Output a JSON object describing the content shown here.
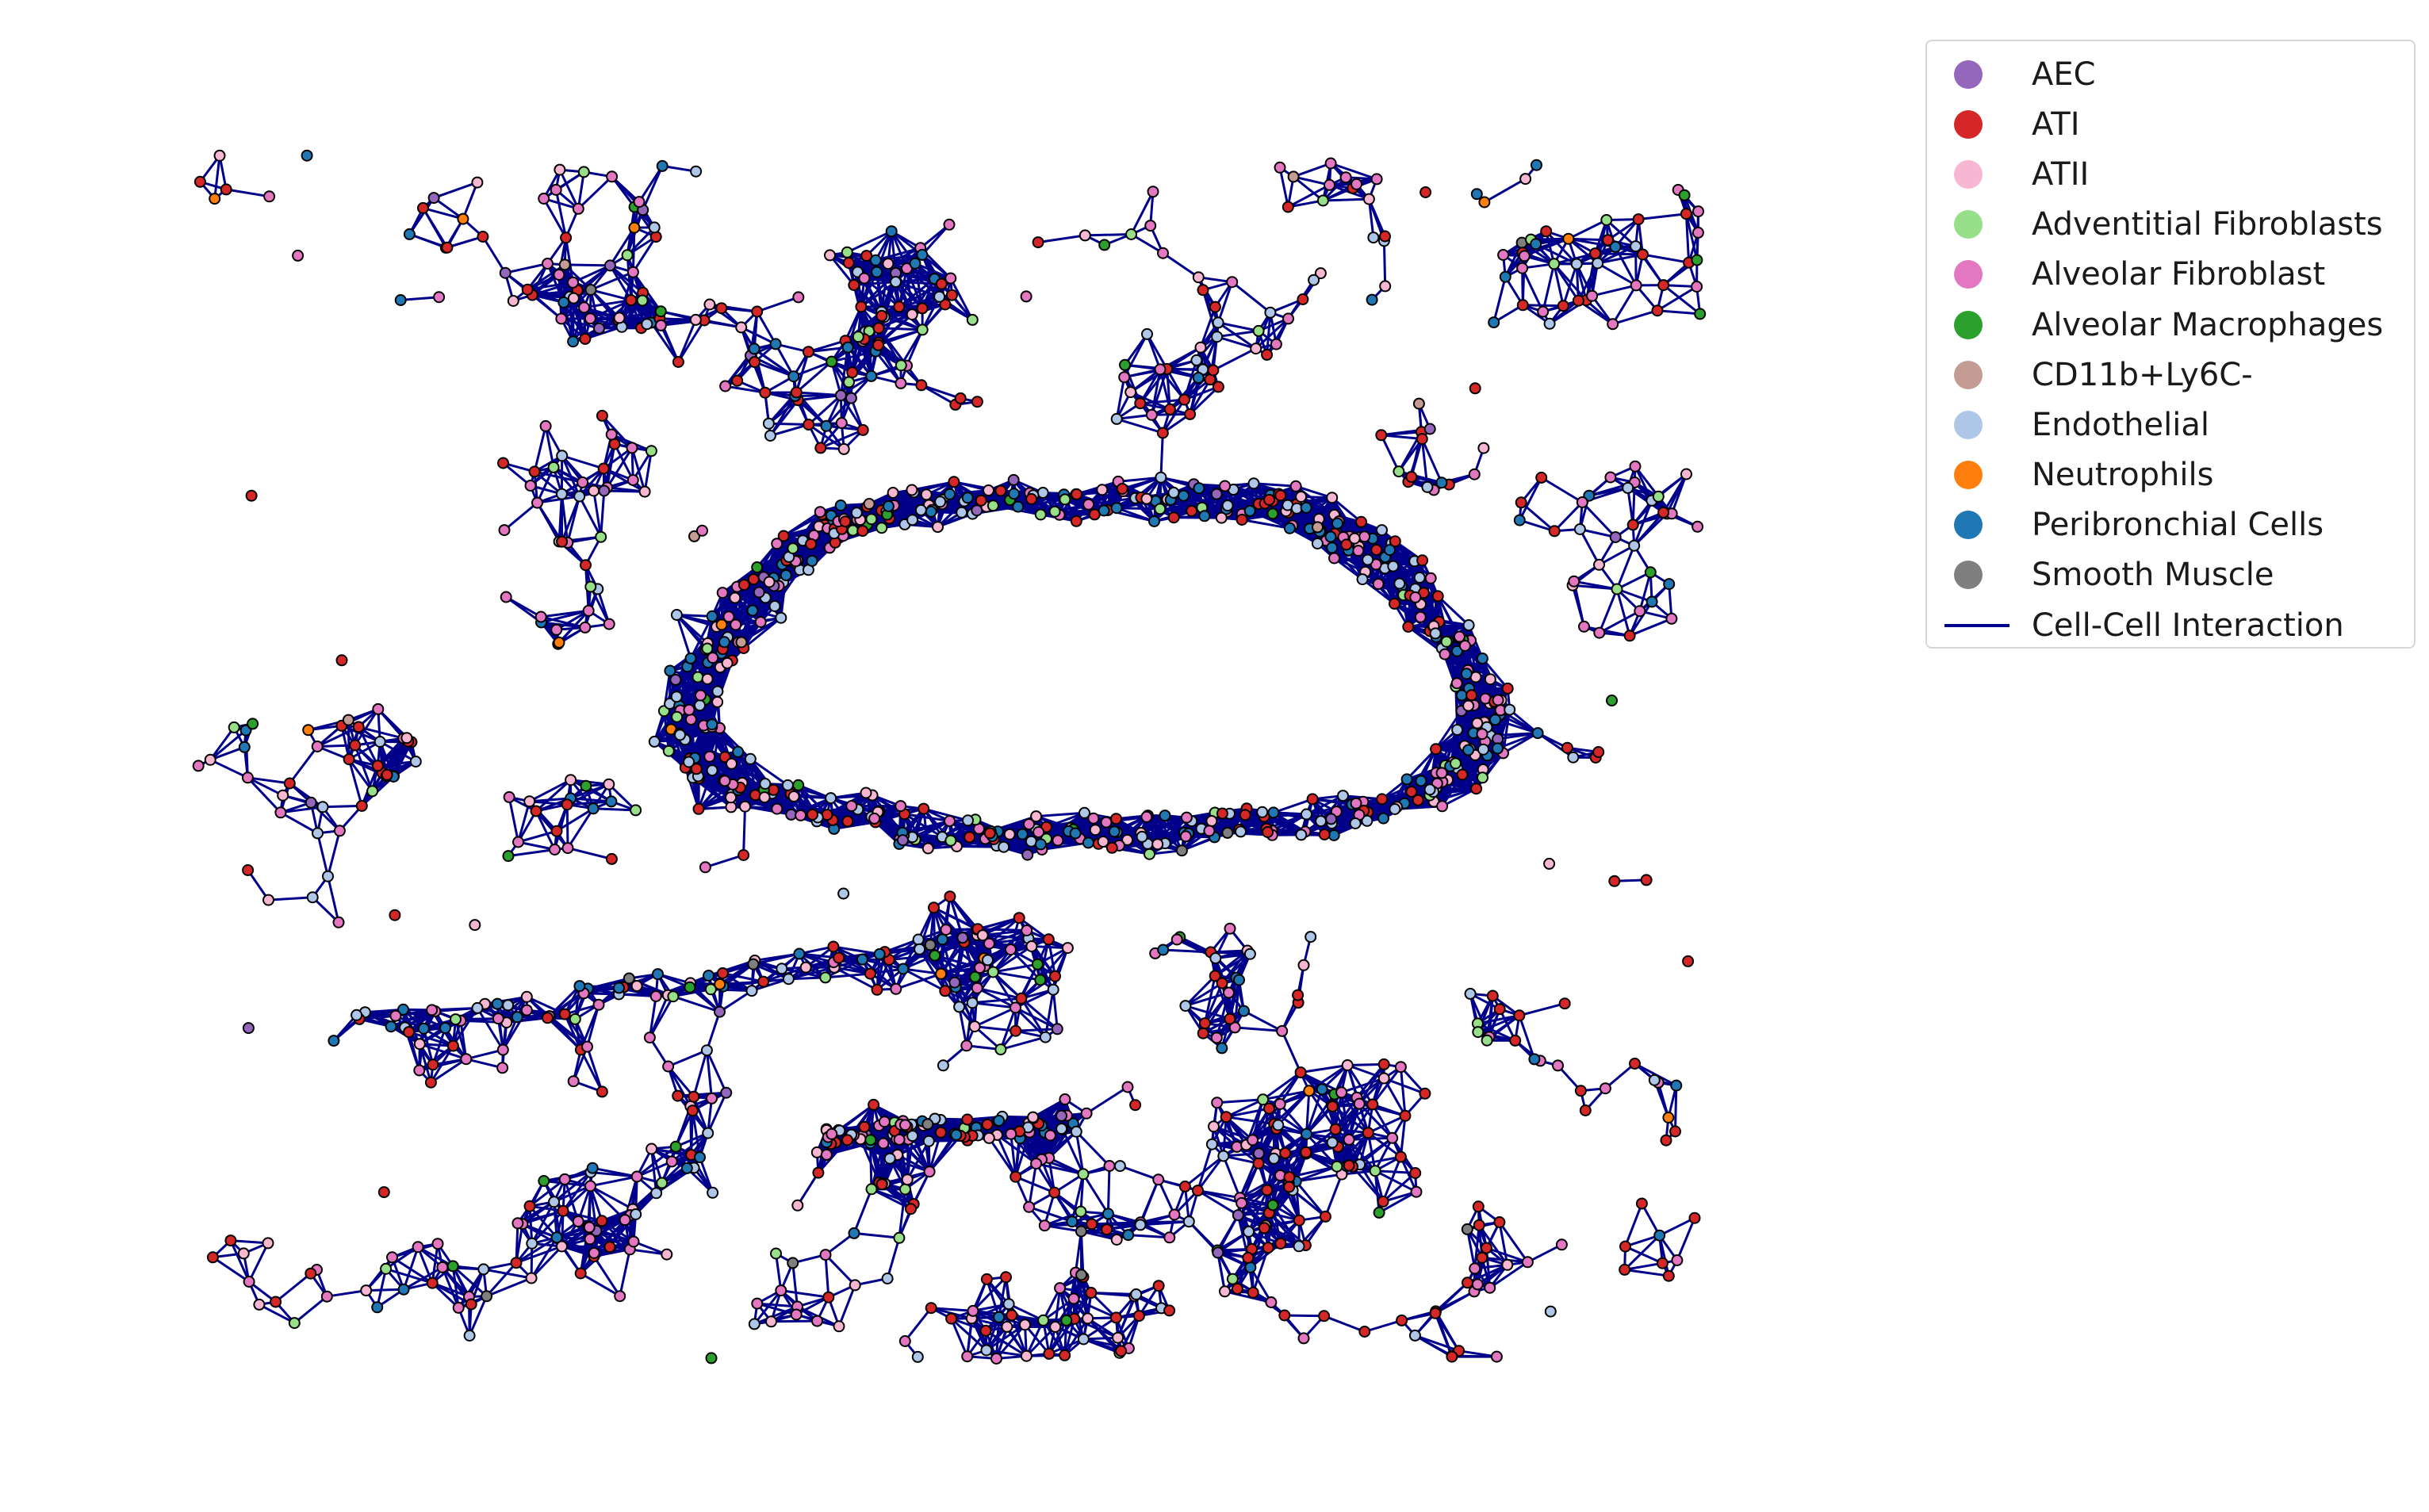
{
  "figure": {
    "title": "",
    "type": "spatial cell-cell interaction graph"
  },
  "legend": {
    "items": [
      {
        "label": "AEC",
        "color": "#9467bd",
        "kind": "marker"
      },
      {
        "label": "ATI",
        "color": "#d62728",
        "kind": "marker"
      },
      {
        "label": "ATII",
        "color": "#f7b6d2",
        "kind": "marker"
      },
      {
        "label": "Adventitial Fibroblasts",
        "color": "#98df8a",
        "kind": "marker"
      },
      {
        "label": "Alveolar Fibroblast",
        "color": "#e377c2",
        "kind": "marker"
      },
      {
        "label": "Alveolar Macrophages",
        "color": "#2ca02c",
        "kind": "marker"
      },
      {
        "label": "CD11b+Ly6C-",
        "color": "#c49c94",
        "kind": "marker"
      },
      {
        "label": "Endothelial",
        "color": "#aec7e8",
        "kind": "marker"
      },
      {
        "label": "Neutrophils",
        "color": "#ff7f0e",
        "kind": "marker"
      },
      {
        "label": "Peribronchial Cells",
        "color": "#1f77b4",
        "kind": "marker"
      },
      {
        "label": "Smooth Muscle",
        "color": "#7f7f7f",
        "kind": "marker"
      },
      {
        "label": "Cell-Cell Interaction",
        "color": "#00008b",
        "kind": "line"
      }
    ]
  },
  "colors": {
    "edge": "#00008b",
    "node_outline": "#000000"
  }
}
